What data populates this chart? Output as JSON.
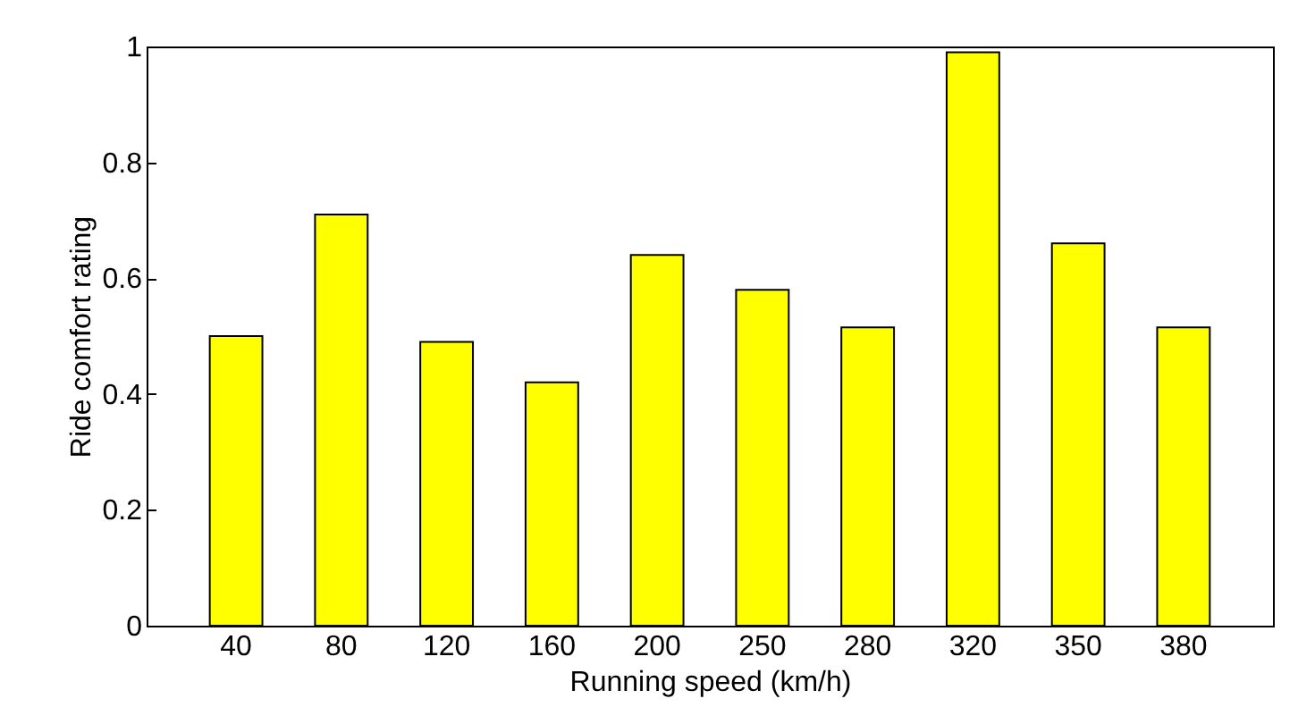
{
  "chart_data": {
    "type": "bar",
    "xlabel": "Running speed (km/h)",
    "ylabel": "Ride comfort rating",
    "categories": [
      "40",
      "80",
      "120",
      "160",
      "200",
      "250",
      "280",
      "320",
      "350",
      "380"
    ],
    "values": [
      0.5,
      0.71,
      0.49,
      0.42,
      0.64,
      0.58,
      0.515,
      0.99,
      0.66,
      0.515
    ],
    "color": "#ffff00",
    "ylim": [
      0,
      1
    ],
    "yticks": [
      0,
      0.2,
      0.4,
      0.6,
      0.8,
      1
    ],
    "grid": false
  }
}
